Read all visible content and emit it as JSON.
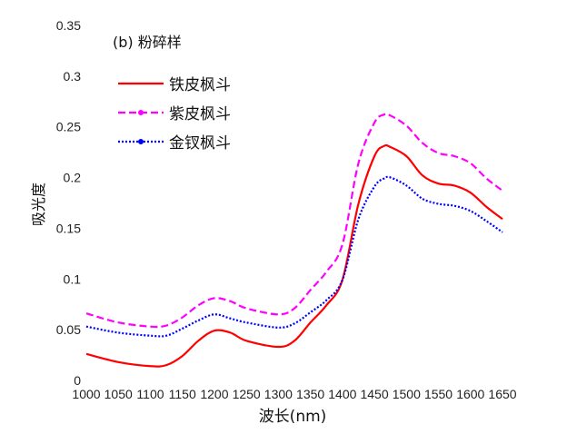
{
  "chart_data": {
    "type": "line",
    "title": "(b) 粉碎样",
    "xlabel": "波长(nm)",
    "ylabel": "吸光度",
    "xlim": [
      1000,
      1650
    ],
    "ylim": [
      0,
      0.35
    ],
    "x_ticks": [
      "1000",
      "1050",
      "1100",
      "1150",
      "1200",
      "1250",
      "1300",
      "1350",
      "1400",
      "1450",
      "1500",
      "1550",
      "1600",
      "1650"
    ],
    "y_ticks": [
      "0",
      "0.05",
      "0.1",
      "0.15",
      "0.2",
      "0.25",
      "0.3",
      "0.35"
    ],
    "grid": false,
    "legend_position": "top-left",
    "x": [
      1000,
      1050,
      1100,
      1125,
      1150,
      1175,
      1200,
      1225,
      1250,
      1300,
      1325,
      1350,
      1375,
      1400,
      1425,
      1450,
      1465,
      1475,
      1500,
      1525,
      1550,
      1575,
      1600,
      1625,
      1650
    ],
    "series": [
      {
        "name": "铁皮枫斗",
        "color": "#ff0000",
        "style": "solid",
        "values": [
          0.027,
          0.019,
          0.015,
          0.016,
          0.025,
          0.04,
          0.05,
          0.048,
          0.04,
          0.034,
          0.04,
          0.058,
          0.075,
          0.1,
          0.175,
          0.222,
          0.232,
          0.231,
          0.222,
          0.203,
          0.195,
          0.193,
          0.186,
          0.172,
          0.16
        ]
      },
      {
        "name": "紫皮枫斗",
        "color": "#ff00ff",
        "style": "dashed",
        "values": [
          0.067,
          0.058,
          0.054,
          0.055,
          0.063,
          0.075,
          0.082,
          0.079,
          0.072,
          0.066,
          0.072,
          0.09,
          0.108,
          0.135,
          0.215,
          0.255,
          0.263,
          0.262,
          0.252,
          0.235,
          0.225,
          0.222,
          0.215,
          0.2,
          0.188
        ]
      },
      {
        "name": "金钗枫斗",
        "color": "#0000ff",
        "style": "dotted",
        "values": [
          0.054,
          0.048,
          0.045,
          0.045,
          0.052,
          0.06,
          0.066,
          0.062,
          0.058,
          0.053,
          0.057,
          0.068,
          0.08,
          0.1,
          0.16,
          0.192,
          0.2,
          0.201,
          0.193,
          0.18,
          0.175,
          0.173,
          0.168,
          0.158,
          0.147
        ]
      }
    ]
  }
}
